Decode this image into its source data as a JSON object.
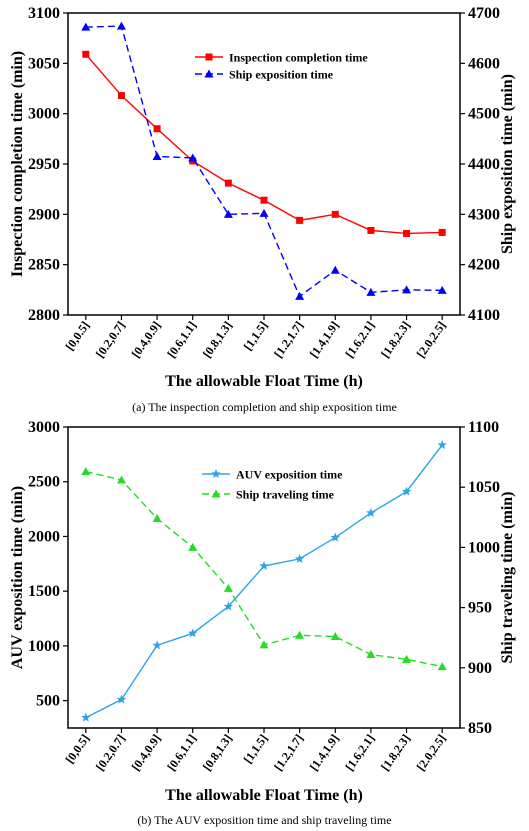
{
  "chart_data": [
    {
      "type": "line",
      "caption": "(a) The inspection completion and ship exposition time",
      "xlabel": "The allowable Float Time (h)",
      "ylabel_left": "Inspection completion time (min)",
      "ylabel_right": "Ship exposition time (min)",
      "categories": [
        "[0,0.5]",
        "[0.2,0.7]",
        "[0.4,0.9]",
        "[0.6,1.1]",
        "[0.8,1.3]",
        "[1,1.5]",
        "[1.2,1.7]",
        "[1.4,1.9]",
        "[1.6,2.1]",
        "[1.8,2.3]",
        "[2.0,2.5]"
      ],
      "ylim_left": [
        2800,
        3100
      ],
      "yticks_left": [
        2800,
        2850,
        2900,
        2950,
        3000,
        3050,
        3100
      ],
      "ylim_right": [
        4100,
        4700
      ],
      "yticks_right": [
        4100,
        4200,
        4300,
        4400,
        4500,
        4600,
        4700
      ],
      "legend_position": "top-right",
      "series": [
        {
          "name": "Inspection completion time",
          "axis": "left",
          "color": "#ff0000",
          "marker": "square",
          "dash": false,
          "values": [
            3059,
            3018,
            2985,
            2953,
            2931,
            2914,
            2894,
            2900,
            2884,
            2881,
            2882
          ]
        },
        {
          "name": "Ship exposition time",
          "axis": "right",
          "color": "#0000ff",
          "marker": "triangle",
          "dash": true,
          "values": [
            4672,
            4674,
            4415,
            4412,
            4300,
            4302,
            4137,
            4189,
            4145,
            4150,
            4149
          ]
        }
      ]
    },
    {
      "type": "line",
      "caption": "(b) The AUV exposition time and ship traveling time",
      "xlabel": "The allowable Float Time (h)",
      "ylabel_left": "AUV exposition time (min)",
      "ylabel_right": "Ship traveling time (min)",
      "categories": [
        "[0,0.5]",
        "[0.2,0.7]",
        "[0.4,0.9]",
        "[0.6,1.1]",
        "[0.8,1.3]",
        "[1,1.5]",
        "[1.2,1.7]",
        "[1.4,1.9]",
        "[1.6,2.1]",
        "[1.8,2.3]",
        "[2.0,2.5]"
      ],
      "ylim_left": [
        250,
        3000
      ],
      "yticks_left": [
        500,
        1000,
        1500,
        2000,
        2500,
        3000
      ],
      "ylim_right": [
        850,
        1100
      ],
      "yticks_right": [
        850,
        900,
        950,
        1000,
        1050,
        1100
      ],
      "legend_position": "top-center",
      "series": [
        {
          "name": "AUV exposition time",
          "axis": "left",
          "color": "#2ea3e6",
          "marker": "star",
          "dash": false,
          "values": [
            345,
            510,
            1005,
            1115,
            1360,
            1730,
            1795,
            1990,
            2215,
            2410,
            2835
          ]
        },
        {
          "name": "Ship traveling time",
          "axis": "right",
          "color": "#22dd22",
          "marker": "triangle",
          "dash": true,
          "values": [
            1063,
            1056,
            1024,
            1000,
            966,
            919,
            927,
            926,
            911,
            907,
            901
          ]
        }
      ]
    }
  ]
}
